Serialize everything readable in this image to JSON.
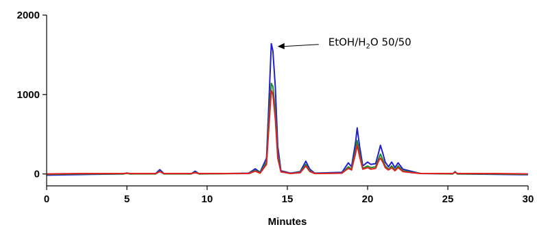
{
  "chart_data": {
    "type": "line",
    "title": "",
    "xlabel": "Minutes",
    "ylabel": "",
    "xlim": [
      0,
      30
    ],
    "ylim": [
      -150,
      2000
    ],
    "x_ticks": [
      0,
      5,
      10,
      15,
      20,
      25,
      30
    ],
    "y_ticks": [
      0,
      1000,
      2000
    ],
    "grid": false,
    "legend": "none",
    "annotation": {
      "text_prefix": "EtOH/H",
      "text_sub": "2",
      "text_suffix": "O 50/50",
      "points_to": {
        "x": 14.05,
        "y": 1640
      }
    },
    "series": [
      {
        "color": "#1f1fd0",
        "points": [
          [
            0,
            -15
          ],
          [
            2,
            -8
          ],
          [
            4.8,
            0
          ],
          [
            5,
            12
          ],
          [
            5.2,
            0
          ],
          [
            6.8,
            5
          ],
          [
            7.05,
            55
          ],
          [
            7.3,
            5
          ],
          [
            9,
            0
          ],
          [
            9.25,
            35
          ],
          [
            9.5,
            0
          ],
          [
            12.6,
            10
          ],
          [
            13,
            65
          ],
          [
            13.3,
            20
          ],
          [
            13.7,
            200
          ],
          [
            13.85,
            900
          ],
          [
            14.0,
            1640
          ],
          [
            14.1,
            1550
          ],
          [
            14.25,
            1100
          ],
          [
            14.4,
            350
          ],
          [
            14.6,
            40
          ],
          [
            15.2,
            10
          ],
          [
            15.8,
            30
          ],
          [
            16.15,
            160
          ],
          [
            16.4,
            60
          ],
          [
            16.7,
            10
          ],
          [
            18.4,
            20
          ],
          [
            18.8,
            140
          ],
          [
            19.0,
            90
          ],
          [
            19.25,
            400
          ],
          [
            19.35,
            580
          ],
          [
            19.5,
            350
          ],
          [
            19.7,
            100
          ],
          [
            20.0,
            150
          ],
          [
            20.2,
            120
          ],
          [
            20.5,
            130
          ],
          [
            20.7,
            280
          ],
          [
            20.8,
            360
          ],
          [
            20.95,
            260
          ],
          [
            21.1,
            150
          ],
          [
            21.3,
            90
          ],
          [
            21.5,
            150
          ],
          [
            21.7,
            80
          ],
          [
            21.9,
            140
          ],
          [
            22.2,
            60
          ],
          [
            22.8,
            30
          ],
          [
            23.3,
            5
          ],
          [
            25.3,
            0
          ],
          [
            25.45,
            30
          ],
          [
            25.6,
            0
          ],
          [
            28,
            -5
          ],
          [
            30,
            -10
          ]
        ]
      },
      {
        "color": "#1f8c1f",
        "points": [
          [
            0,
            -5
          ],
          [
            2,
            0
          ],
          [
            4.8,
            0
          ],
          [
            5,
            8
          ],
          [
            5.2,
            0
          ],
          [
            6.8,
            0
          ],
          [
            7.05,
            35
          ],
          [
            7.3,
            0
          ],
          [
            9,
            0
          ],
          [
            9.25,
            20
          ],
          [
            9.5,
            0
          ],
          [
            12.6,
            5
          ],
          [
            13,
            45
          ],
          [
            13.3,
            15
          ],
          [
            13.7,
            150
          ],
          [
            13.85,
            700
          ],
          [
            14.0,
            1140
          ],
          [
            14.1,
            1100
          ],
          [
            14.25,
            800
          ],
          [
            14.4,
            250
          ],
          [
            14.6,
            30
          ],
          [
            15.2,
            5
          ],
          [
            15.8,
            20
          ],
          [
            16.15,
            120
          ],
          [
            16.4,
            40
          ],
          [
            16.7,
            5
          ],
          [
            18.4,
            10
          ],
          [
            18.8,
            90
          ],
          [
            19.0,
            60
          ],
          [
            19.25,
            300
          ],
          [
            19.35,
            420
          ],
          [
            19.5,
            260
          ],
          [
            19.7,
            70
          ],
          [
            20.0,
            100
          ],
          [
            20.2,
            80
          ],
          [
            20.5,
            90
          ],
          [
            20.7,
            200
          ],
          [
            20.8,
            250
          ],
          [
            20.95,
            180
          ],
          [
            21.1,
            100
          ],
          [
            21.3,
            60
          ],
          [
            21.5,
            100
          ],
          [
            21.7,
            50
          ],
          [
            21.9,
            100
          ],
          [
            22.2,
            40
          ],
          [
            22.8,
            20
          ],
          [
            23.3,
            5
          ],
          [
            25.3,
            0
          ],
          [
            25.45,
            25
          ],
          [
            25.6,
            0
          ],
          [
            28,
            0
          ],
          [
            30,
            -5
          ]
        ]
      },
      {
        "color": "#e02020",
        "points": [
          [
            0,
            0
          ],
          [
            2,
            5
          ],
          [
            4.8,
            5
          ],
          [
            5,
            10
          ],
          [
            5.2,
            5
          ],
          [
            6.8,
            5
          ],
          [
            7.05,
            30
          ],
          [
            7.3,
            5
          ],
          [
            9,
            5
          ],
          [
            9.25,
            15
          ],
          [
            9.5,
            5
          ],
          [
            12.6,
            5
          ],
          [
            13,
            35
          ],
          [
            13.3,
            10
          ],
          [
            13.7,
            120
          ],
          [
            13.85,
            600
          ],
          [
            14.0,
            1050
          ],
          [
            14.1,
            1000
          ],
          [
            14.25,
            700
          ],
          [
            14.4,
            200
          ],
          [
            14.6,
            25
          ],
          [
            15.2,
            5
          ],
          [
            15.8,
            15
          ],
          [
            16.15,
            100
          ],
          [
            16.4,
            30
          ],
          [
            16.7,
            5
          ],
          [
            18.4,
            10
          ],
          [
            18.8,
            70
          ],
          [
            19.0,
            50
          ],
          [
            19.25,
            260
          ],
          [
            19.35,
            360
          ],
          [
            19.5,
            220
          ],
          [
            19.7,
            60
          ],
          [
            20.0,
            80
          ],
          [
            20.2,
            60
          ],
          [
            20.5,
            70
          ],
          [
            20.7,
            170
          ],
          [
            20.8,
            200
          ],
          [
            20.95,
            150
          ],
          [
            21.1,
            80
          ],
          [
            21.3,
            50
          ],
          [
            21.5,
            80
          ],
          [
            21.7,
            40
          ],
          [
            21.9,
            80
          ],
          [
            22.2,
            30
          ],
          [
            22.8,
            15
          ],
          [
            23.3,
            5
          ],
          [
            25.3,
            5
          ],
          [
            25.45,
            20
          ],
          [
            25.6,
            5
          ],
          [
            28,
            5
          ],
          [
            30,
            0
          ]
        ]
      }
    ]
  }
}
